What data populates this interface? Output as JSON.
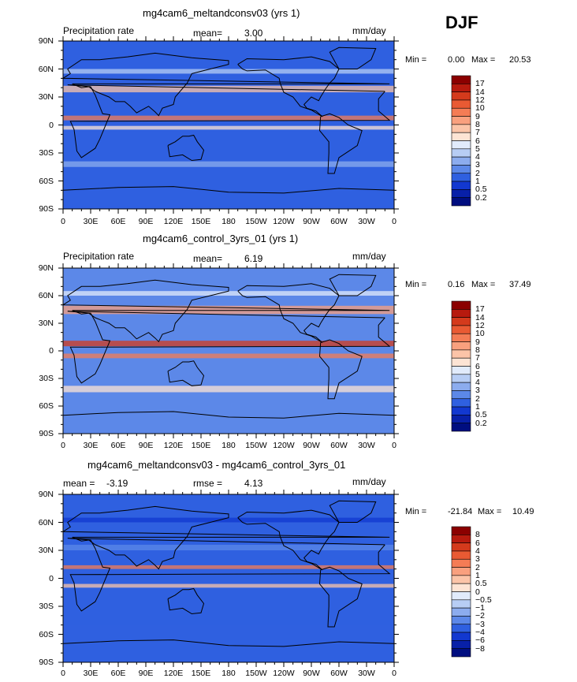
{
  "season_label": "DJF",
  "chart_data": [
    {
      "type": "heatmap",
      "title": "mg4cam6_meltandconsv03 (yrs 1)",
      "variable": "Precipitation rate",
      "stat1": "mean=",
      "stat1_value": "3.00",
      "units": "mm/day",
      "min_label": "Min =",
      "min_value": "0.00",
      "max_label": "Max =",
      "max_value": "20.53",
      "lat_ticks": [
        "90N",
        "60N",
        "30N",
        "0",
        "30S",
        "60S",
        "90S"
      ],
      "lon_ticks": [
        "0",
        "30E",
        "60E",
        "90E",
        "120E",
        "150E",
        "180",
        "150W",
        "120W",
        "90W",
        "60W",
        "30W",
        "0"
      ],
      "colorbar_levels": [
        "17",
        "14",
        "12",
        "10",
        "9",
        "8",
        "7",
        "6",
        "5",
        "4",
        "3",
        "2",
        "1",
        "0.5",
        "0.2"
      ],
      "colorbar_colors": [
        "#8b0000",
        "#b71a0e",
        "#d43a1c",
        "#e95a33",
        "#f47c55",
        "#f9a07e",
        "#fbc4a8",
        "#fde4d4",
        "#e1ebfb",
        "#b7cdf4",
        "#8cacee",
        "#5c88e8",
        "#2f60e0",
        "#1238d0",
        "#0820a8",
        "#000e80"
      ]
    },
    {
      "type": "heatmap",
      "title": "mg4cam6_control_3yrs_01 (yrs 1)",
      "variable": "Precipitation rate",
      "stat1": "mean=",
      "stat1_value": "6.19",
      "units": "mm/day",
      "min_label": "Min =",
      "min_value": "0.16",
      "max_label": "Max =",
      "max_value": "37.49",
      "lat_ticks": [
        "90N",
        "60N",
        "30N",
        "0",
        "30S",
        "60S",
        "90S"
      ],
      "lon_ticks": [
        "0",
        "30E",
        "60E",
        "90E",
        "120E",
        "150E",
        "180",
        "150W",
        "120W",
        "90W",
        "60W",
        "30W",
        "0"
      ],
      "colorbar_levels": [
        "17",
        "14",
        "12",
        "10",
        "9",
        "8",
        "7",
        "6",
        "5",
        "4",
        "3",
        "2",
        "1",
        "0.5",
        "0.2"
      ],
      "colorbar_colors": [
        "#8b0000",
        "#b71a0e",
        "#d43a1c",
        "#e95a33",
        "#f47c55",
        "#f9a07e",
        "#fbc4a8",
        "#fde4d4",
        "#e1ebfb",
        "#b7cdf4",
        "#8cacee",
        "#5c88e8",
        "#2f60e0",
        "#1238d0",
        "#0820a8",
        "#000e80"
      ]
    },
    {
      "type": "heatmap",
      "title": "mg4cam6_meltandconsv03 - mg4cam6_control_3yrs_01",
      "stat1": "mean =",
      "stat1_value": "-3.19",
      "stat2": "rmse =",
      "stat2_value": "4.13",
      "units": "mm/day",
      "min_label": "Min =",
      "min_value": "-21.84",
      "max_label": "Max =",
      "max_value": "10.49",
      "lat_ticks": [
        "90N",
        "60N",
        "30N",
        "0",
        "30S",
        "60S",
        "90S"
      ],
      "lon_ticks": [
        "0",
        "30E",
        "60E",
        "90E",
        "120E",
        "150E",
        "180",
        "150W",
        "120W",
        "90W",
        "60W",
        "30W",
        "0"
      ],
      "colorbar_levels": [
        "8",
        "6",
        "4",
        "3",
        "2",
        "1",
        "0.5",
        "0",
        "−0.5",
        "−1",
        "−2",
        "−3",
        "−4",
        "−6",
        "−8"
      ],
      "colorbar_colors": [
        "#8b0000",
        "#b71a0e",
        "#d43a1c",
        "#e95a33",
        "#f47c55",
        "#f9a07e",
        "#fbc4a8",
        "#fde4d4",
        "#e1ebfb",
        "#b7cdf4",
        "#8cacee",
        "#5c88e8",
        "#2f60e0",
        "#1238d0",
        "#0820a8",
        "#000e80"
      ]
    }
  ]
}
